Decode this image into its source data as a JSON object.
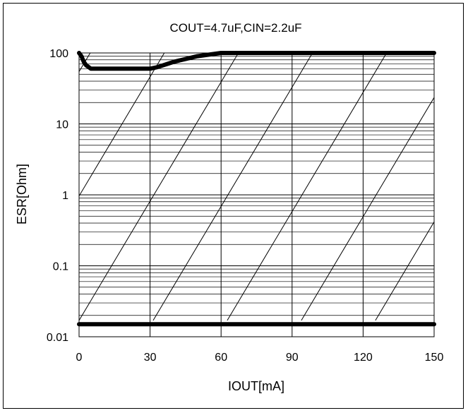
{
  "chart_data": {
    "type": "line",
    "title": "COUT=4.7uF,CIN=2.2uF",
    "xlabel": "IOUT[mA]",
    "ylabel": "ESR[Ohm]",
    "x_ticks": [
      0,
      30,
      60,
      90,
      120,
      150
    ],
    "y_ticks": [
      100,
      10,
      1,
      0.1,
      0.01
    ],
    "y_tick_labels": [
      "100",
      "10",
      "1",
      "0.1",
      "0.01"
    ],
    "xlim": [
      0,
      150
    ],
    "ylim": [
      0.01,
      100
    ],
    "yscale": "log",
    "grid": true,
    "series": [
      {
        "role": "upper-boundary",
        "color": "#000000",
        "x": [
          0,
          1,
          2,
          3,
          5,
          15,
          30,
          33,
          40,
          50,
          60,
          150
        ],
        "y": [
          100,
          90,
          75,
          67,
          60,
          60,
          60,
          63,
          75,
          90,
          100,
          100
        ]
      },
      {
        "role": "lower-boundary",
        "color": "#000000",
        "x": [
          0,
          150
        ],
        "y": [
          0.015,
          0.015
        ]
      }
    ],
    "hatch": {
      "direction": "diagonal",
      "x_spacing": 31.3,
      "decades_per_x": 0.056
    }
  }
}
